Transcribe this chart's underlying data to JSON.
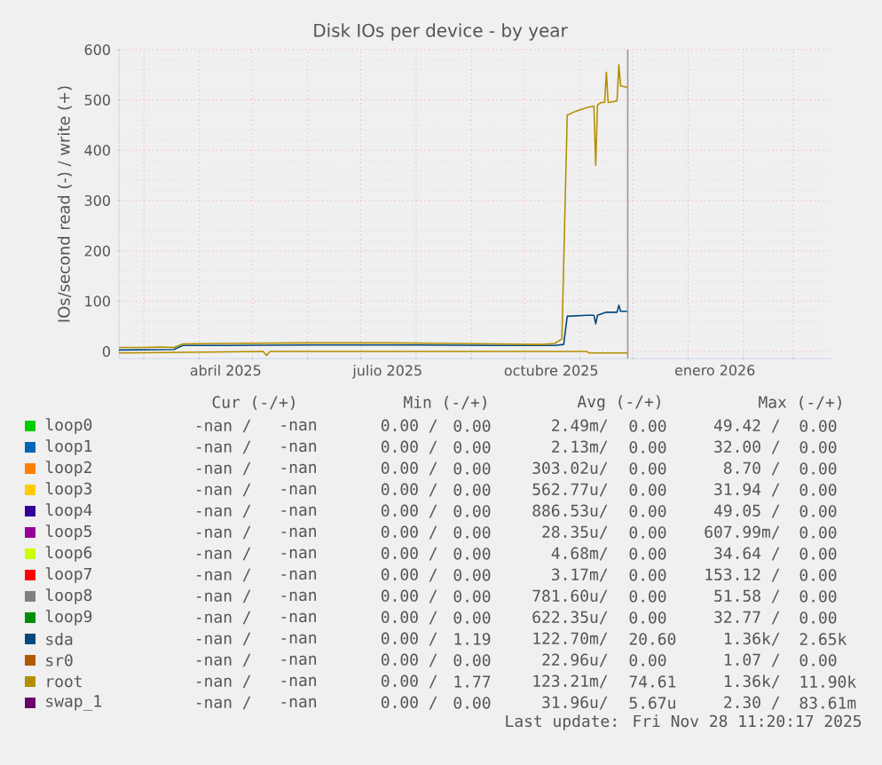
{
  "chart_data": {
    "type": "line",
    "title": "Disk IOs per device - by year",
    "ylabel": "IOs/second read (-) / write (+)",
    "xlim": [
      "2025-02-15",
      "2026-03-22"
    ],
    "xticks": [
      {
        "value": "2025-03-01",
        "label": null
      },
      {
        "value": "2025-04-01",
        "label": null
      },
      {
        "value": "2025-05-01",
        "label": null
      },
      {
        "value": "2025-06-01",
        "label": null
      },
      {
        "value": "2025-07-01",
        "label": null
      },
      {
        "value": "2025-08-01",
        "label": null
      },
      {
        "value": "2025-09-01",
        "label": null
      },
      {
        "value": "2025-10-01",
        "label": null
      },
      {
        "value": "2025-11-01",
        "label": null
      },
      {
        "value": "2025-12-01",
        "label": null
      },
      {
        "value": "2026-01-01",
        "label": null
      },
      {
        "value": "2026-02-01",
        "label": null
      },
      {
        "value": "2026-03-01",
        "label": null
      },
      {
        "value": "2025-04-16",
        "label": "abril 2025"
      },
      {
        "value": "2025-07-16",
        "label": "julio 2025"
      },
      {
        "value": "2025-10-16",
        "label": "octubre 2025"
      },
      {
        "value": "2026-01-16",
        "label": "enero 2026"
      }
    ],
    "ylim": [
      -14,
      600
    ],
    "yticks": [
      0,
      100,
      200,
      300,
      400,
      500,
      600
    ],
    "grid": true,
    "legend": "bottom",
    "ref_lines": [
      {
        "axis": "x",
        "value": "2025-11-28",
        "color": "#999999"
      }
    ],
    "series": [
      {
        "name": "loop0",
        "color": "#00cc00"
      },
      {
        "name": "loop1",
        "color": "#0066b3"
      },
      {
        "name": "loop2",
        "color": "#ff8000"
      },
      {
        "name": "loop3",
        "color": "#ffcc00"
      },
      {
        "name": "loop4",
        "color": "#330099"
      },
      {
        "name": "loop5",
        "color": "#990099"
      },
      {
        "name": "loop6",
        "color": "#ccff00"
      },
      {
        "name": "loop7",
        "color": "#ff0000"
      },
      {
        "name": "loop8",
        "color": "#808080"
      },
      {
        "name": "loop9",
        "color": "#008f00"
      },
      {
        "name": "sda",
        "color": "#00487d",
        "x": [
          "2025-02-15",
          "2025-03-18",
          "2025-03-23",
          "2025-04-15",
          "2025-06-01",
          "2025-08-01",
          "2025-09-15",
          "2025-10-18",
          "2025-10-23",
          "2025-10-25",
          "2025-11-05",
          "2025-11-09",
          "2025-11-10",
          "2025-11-11",
          "2025-11-16",
          "2025-11-22",
          "2025-11-23",
          "2025-11-24",
          "2025-11-28"
        ],
        "values": [
          3,
          4,
          12,
          12,
          13,
          13,
          12,
          12,
          14,
          70,
          72,
          72,
          55,
          72,
          78,
          78,
          92,
          80,
          80
        ]
      },
      {
        "name": "sr0",
        "color": "#b35a00"
      },
      {
        "name": "root",
        "color": "#b38f00",
        "x": [
          "2025-02-15",
          "2025-03-01",
          "2025-03-10",
          "2025-03-18",
          "2025-03-23",
          "2025-04-15",
          "2025-06-01",
          "2025-07-15",
          "2025-08-20",
          "2025-09-15",
          "2025-10-10",
          "2025-10-18",
          "2025-10-22",
          "2025-10-25",
          "2025-10-30",
          "2025-11-05",
          "2025-11-09",
          "2025-11-10",
          "2025-11-11",
          "2025-11-13",
          "2025-11-15",
          "2025-11-16",
          "2025-11-17",
          "2025-11-22",
          "2025-11-23",
          "2025-11-24",
          "2025-11-28"
        ],
        "values": [
          8,
          8,
          9,
          8,
          15,
          16,
          17,
          17,
          16,
          15,
          14,
          16,
          25,
          470,
          478,
          485,
          488,
          370,
          490,
          495,
          495,
          555,
          495,
          498,
          570,
          528,
          525
        ]
      },
      {
        "name": "swap_1",
        "color": "#6b006b"
      },
      {
        "color": "#b38f00",
        "x": [
          "2025-02-15",
          "2025-05-07",
          "2025-05-09",
          "2025-05-11",
          "2025-11-05",
          "2025-11-06",
          "2025-11-28"
        ],
        "values": [
          -3,
          0,
          -8,
          0,
          0,
          -3,
          -3
        ]
      }
    ],
    "annotations": [
      "Cur (-/+)",
      "Min (-/+)",
      "Avg (-/+)",
      "Max (-/+)",
      "-nan /",
      "-nan",
      "0.00 /",
      "0.00",
      "2.49m/",
      "0.00",
      "49.42 /",
      "0.00",
      "-nan /",
      "-nan",
      "0.00 /",
      "0.00",
      "2.13m/",
      "0.00",
      "32.00 /",
      "0.00",
      "-nan /",
      "-nan",
      "0.00 /",
      "0.00",
      "303.02u/",
      "0.00",
      "8.70 /",
      "0.00",
      "-nan /",
      "-nan",
      "0.00 /",
      "0.00",
      "562.77u/",
      "0.00",
      "31.94 /",
      "0.00",
      "-nan /",
      "-nan",
      "0.00 /",
      "0.00",
      "886.53u/",
      "0.00",
      "49.05 /",
      "0.00",
      "-nan /",
      "-nan",
      "0.00 /",
      "0.00",
      "28.35u/",
      "0.00",
      "607.99m/",
      "0.00",
      "-nan /",
      "-nan",
      "0.00 /",
      "0.00",
      "4.68m/",
      "0.00",
      "34.64 /",
      "0.00",
      "-nan /",
      "-nan",
      "0.00 /",
      "0.00",
      "3.17m/",
      "0.00",
      "153.12 /",
      "0.00",
      "-nan /",
      "-nan",
      "0.00 /",
      "0.00",
      "781.60u/",
      "0.00",
      "51.58 /",
      "0.00",
      "-nan /",
      "-nan",
      "0.00 /",
      "0.00",
      "622.35u/",
      "0.00",
      "32.77 /",
      "0.00",
      "-nan /",
      "-nan",
      "0.00 /",
      "1.19",
      "122.70m/",
      "20.60",
      "1.36k/",
      "2.65k",
      "-nan /",
      "-nan",
      "0.00 /",
      "0.00",
      "22.96u/",
      "0.00",
      "1.07 /",
      "0.00",
      "-nan /",
      "-nan",
      "0.00 /",
      "1.77",
      "123.21m/",
      "74.61",
      "1.36k/",
      "11.90k",
      "-nan /",
      "-nan",
      "0.00 /",
      "0.00",
      "31.96u/",
      "5.67u",
      "2.30 /",
      "83.61m",
      "Last update: Fri Nov 28 11:20:17 2025"
    ]
  }
}
